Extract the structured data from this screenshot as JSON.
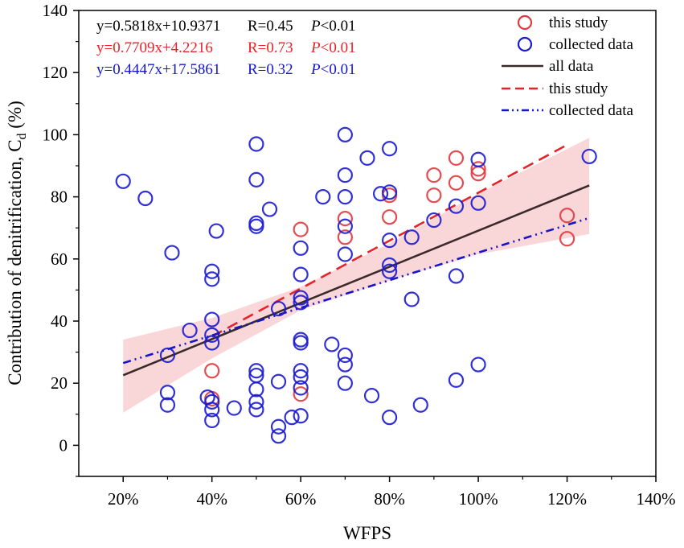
{
  "chart_data": {
    "type": "scatter",
    "xlabel": "WFPS",
    "ylabel_main": "Contribution of denitrification, C",
    "ylabel_sub": "d",
    "ylabel_unit": " (%)",
    "xlim": [
      0.1,
      1.4
    ],
    "ylim": [
      -10,
      140
    ],
    "x_ticks": [
      0.2,
      0.4,
      0.6,
      0.8,
      1.0,
      1.2,
      1.4
    ],
    "x_tick_labels": [
      "20%",
      "40%",
      "60%",
      "80%",
      "100%",
      "120%",
      "140%"
    ],
    "y_ticks": [
      0,
      20,
      40,
      60,
      80,
      100,
      120,
      140
    ],
    "y_tick_labels": [
      "0",
      "20",
      "40",
      "60",
      "80",
      "100",
      "120",
      "140"
    ],
    "equations": [
      {
        "eq": "y=0.5818x+10.9371",
        "r": "R=0.45",
        "p_symbol": "P",
        "p_rest": "<0.01",
        "color": "#000000"
      },
      {
        "eq": "y=0.7709x+4.2216",
        "r": "R=0.73",
        "p_symbol": "P",
        "p_rest": "<0.01",
        "color": "#e8222a"
      },
      {
        "eq": "y=0.4447x+17.5861",
        "r": "R=0.32",
        "p_symbol": "P",
        "p_rest": "<0.01",
        "color": "#1616c8"
      }
    ],
    "legend": [
      {
        "label": "this study",
        "kind": "marker",
        "color": "#e0383e"
      },
      {
        "label": "collected data",
        "kind": "marker",
        "color": "#1a1ad0"
      },
      {
        "label": "all data",
        "kind": "solid",
        "color": "#3a2a2a"
      },
      {
        "label": "this study",
        "kind": "dashed",
        "color": "#e8222a"
      },
      {
        "label": "collected data",
        "kind": "dashdot",
        "color": "#1616c8"
      }
    ],
    "series": [
      {
        "name": "this study",
        "color": "#e0383e",
        "points": [
          [
            0.4,
            24
          ],
          [
            0.4,
            15
          ],
          [
            0.6,
            69.5
          ],
          [
            0.6,
            16.5
          ],
          [
            0.7,
            73
          ],
          [
            0.7,
            67
          ],
          [
            0.8,
            80.5
          ],
          [
            0.8,
            73.5
          ],
          [
            0.9,
            87
          ],
          [
            0.9,
            80.5
          ],
          [
            0.95,
            92.5
          ],
          [
            0.95,
            84.5
          ],
          [
            1.0,
            89
          ],
          [
            1.0,
            87.5
          ],
          [
            1.2,
            74
          ],
          [
            1.2,
            66.5
          ]
        ]
      },
      {
        "name": "collected data",
        "color": "#1a1ad0",
        "points": [
          [
            0.2,
            85
          ],
          [
            0.25,
            79.5
          ],
          [
            0.3,
            29
          ],
          [
            0.3,
            17
          ],
          [
            0.3,
            13
          ],
          [
            0.31,
            62
          ],
          [
            0.35,
            37
          ],
          [
            0.39,
            15.5
          ],
          [
            0.4,
            56
          ],
          [
            0.4,
            53.5
          ],
          [
            0.4,
            40.5
          ],
          [
            0.4,
            35.5
          ],
          [
            0.4,
            33
          ],
          [
            0.4,
            14
          ],
          [
            0.4,
            11.5
          ],
          [
            0.4,
            8
          ],
          [
            0.41,
            69
          ],
          [
            0.45,
            12
          ],
          [
            0.5,
            97
          ],
          [
            0.5,
            85.5
          ],
          [
            0.5,
            71.5
          ],
          [
            0.5,
            70.5
          ],
          [
            0.5,
            24
          ],
          [
            0.5,
            22.5
          ],
          [
            0.5,
            18
          ],
          [
            0.5,
            14
          ],
          [
            0.5,
            11.5
          ],
          [
            0.53,
            76
          ],
          [
            0.55,
            44
          ],
          [
            0.55,
            20.5
          ],
          [
            0.55,
            6
          ],
          [
            0.55,
            3
          ],
          [
            0.58,
            9
          ],
          [
            0.6,
            63.5
          ],
          [
            0.6,
            55
          ],
          [
            0.6,
            47.5
          ],
          [
            0.6,
            46
          ],
          [
            0.6,
            34
          ],
          [
            0.6,
            33
          ],
          [
            0.6,
            24
          ],
          [
            0.6,
            22
          ],
          [
            0.6,
            18.5
          ],
          [
            0.6,
            9.5
          ],
          [
            0.65,
            80
          ],
          [
            0.67,
            32.5
          ],
          [
            0.7,
            100
          ],
          [
            0.7,
            87
          ],
          [
            0.7,
            80
          ],
          [
            0.7,
            70.5
          ],
          [
            0.7,
            61.5
          ],
          [
            0.7,
            29
          ],
          [
            0.7,
            26
          ],
          [
            0.7,
            20
          ],
          [
            0.75,
            92.5
          ],
          [
            0.76,
            16
          ],
          [
            0.78,
            81
          ],
          [
            0.8,
            95.5
          ],
          [
            0.8,
            81.5
          ],
          [
            0.8,
            66
          ],
          [
            0.8,
            58
          ],
          [
            0.8,
            56
          ],
          [
            0.8,
            9
          ],
          [
            0.85,
            67
          ],
          [
            0.85,
            47
          ],
          [
            0.87,
            13
          ],
          [
            0.9,
            72.5
          ],
          [
            0.95,
            77
          ],
          [
            0.95,
            54.5
          ],
          [
            0.95,
            21
          ],
          [
            1.0,
            92
          ],
          [
            1.0,
            78
          ],
          [
            1.0,
            26
          ],
          [
            1.25,
            93
          ]
        ]
      }
    ],
    "fits": [
      {
        "name": "all data",
        "x_range": [
          0.2,
          1.25
        ],
        "slope": 0.5818,
        "intercept": 10.9371,
        "color": "#3a2a2a",
        "style": "solid"
      },
      {
        "name": "this study",
        "x_range": [
          0.4,
          1.2
        ],
        "slope": 0.7709,
        "intercept": 4.2216,
        "color": "#e8222a",
        "style": "dashed"
      },
      {
        "name": "collected data",
        "x_range": [
          0.2,
          1.25
        ],
        "slope": 0.4447,
        "intercept": 17.5861,
        "color": "#1616c8",
        "style": "dashdot"
      }
    ],
    "confidence_band": {
      "color": "#f7c9cc",
      "x": [
        0.2,
        0.4,
        0.6,
        0.8,
        1.0,
        1.25
      ],
      "lower": [
        10.5,
        28,
        43.5,
        53,
        61.5,
        68
      ],
      "upper": [
        34,
        41,
        51,
        65,
        81,
        99
      ]
    }
  }
}
